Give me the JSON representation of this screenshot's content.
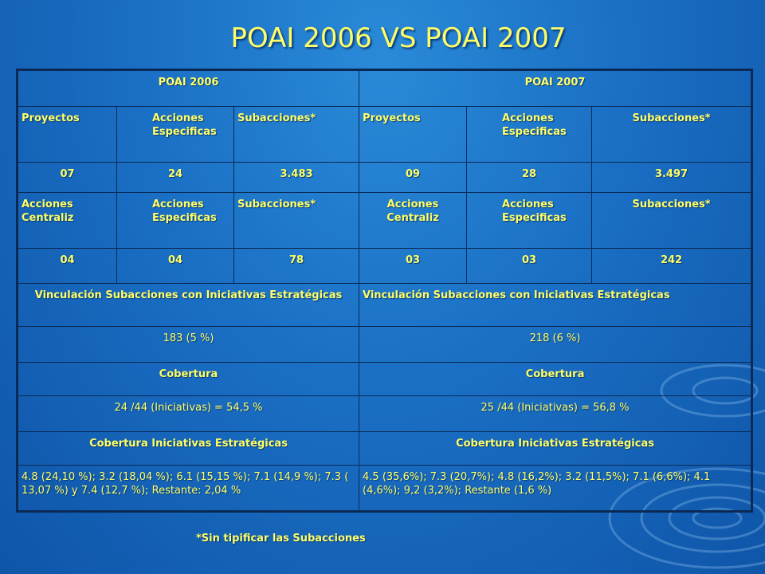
{
  "title": "POAI 2006 VS POAI 2007",
  "headers": {
    "poai_2006": "POAI 2006",
    "poai_2007": "POAI 2007"
  },
  "row_labels_1": [
    "Proyectos",
    "Acciones Especificas",
    "Subacciones*",
    "Proyectos",
    "Acciones Especificas",
    "Subacciones*"
  ],
  "row_values_1": [
    "07",
    "24",
    "3.483",
    "09",
    "28",
    "3.497"
  ],
  "row_labels_2": [
    "Acciones Centraliz",
    "Acciones Especificas",
    "Subacciones*",
    "Acciones Centraliz",
    "Acciones Especificas",
    "Subacciones*"
  ],
  "row_values_2": [
    "04",
    "04",
    "78",
    "03",
    "03",
    "242"
  ],
  "vinculacion": {
    "label_2006": "Vinculación Subacciones con Iniciativas Estratégicas",
    "label_2007": "Vinculación Subacciones con Iniciativas Estratégicas",
    "value_2006": "183 (5 %)",
    "value_2007": "218 (6 %)"
  },
  "cobertura": {
    "label_2006": "Cobertura",
    "label_2007": "Cobertura",
    "value_2006": "24 /44 (Iniciativas) = 54,5 %",
    "value_2007": "25 /44 (Iniciativas) =  56,8 %"
  },
  "cobertura_iniciativas": {
    "label_2006": "Cobertura Iniciativas Estratégicas",
    "label_2007": "Cobertura Iniciativas Estratégicas",
    "value_2006": "4.8 (24,10 %); 3.2 (18,04 %); 6.1 (15,15 %); 7.1 (14,9 %); 7.3 ( 13,07 %) y 7.4 (12,7 %); Restante: 2,04 %",
    "value_2007": "4.5 (35,6%); 7.3 (20,7%); 4.8 (16,2%); 3.2 (11,5%); 7.1 (6,6%); 4.1 (4,6%); 9,2 (3,2%); Restante (1,6 %)"
  },
  "footnote": "*Sin tipificar las Subacciones"
}
